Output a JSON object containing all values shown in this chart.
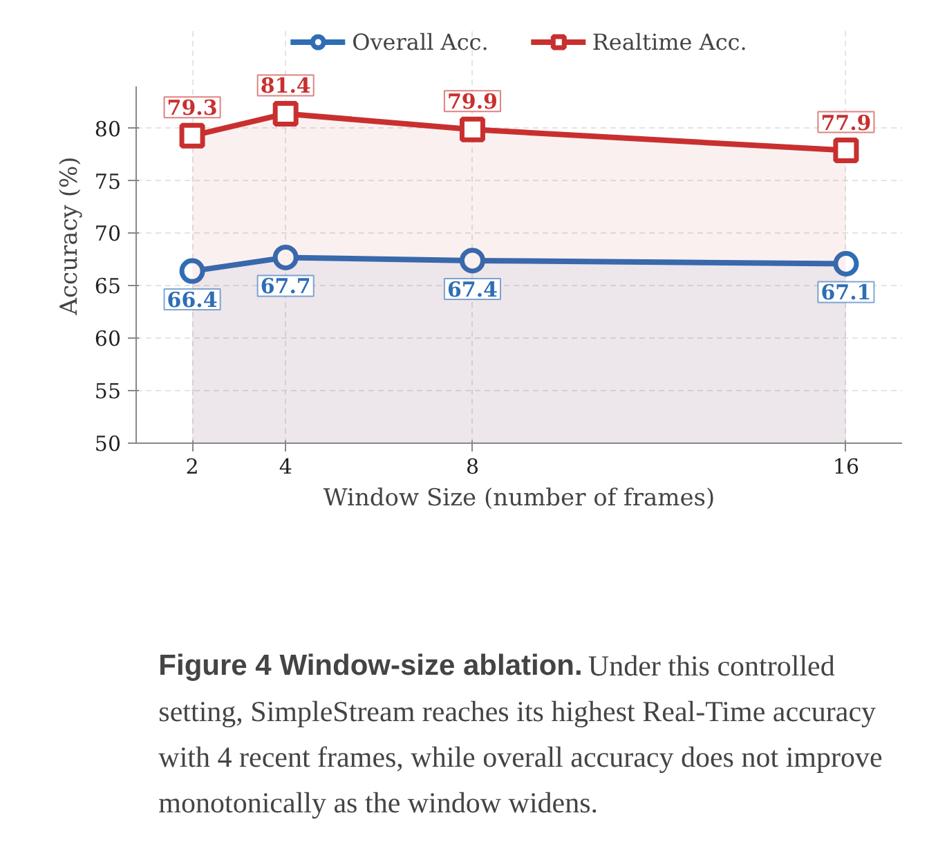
{
  "chart_data": {
    "type": "area",
    "xlabel": "Window Size (number of frames)",
    "ylabel": "Accuracy (%)",
    "x": [
      2,
      4,
      8,
      16
    ],
    "xlim": [
      0.8,
      17.2
    ],
    "xticks": [
      2,
      4,
      8,
      16
    ],
    "ylim": [
      50,
      84
    ],
    "yticks": [
      50,
      55,
      60,
      65,
      70,
      75,
      80
    ],
    "series": [
      {
        "name": "Overall Acc.",
        "color": "#2f6db5",
        "values": [
          66.4,
          67.7,
          67.4,
          67.1
        ],
        "marker": "circle"
      },
      {
        "name": "Realtime Acc.",
        "color": "#c8302f",
        "values": [
          79.3,
          81.4,
          79.9,
          77.9
        ],
        "marker": "square"
      }
    ],
    "data_labels": true,
    "grid": true,
    "legend": "top",
    "line_style": "solid",
    "annotations": [
      "Figure 4  Window-size ablation.",
      "Under this controlled setting, SimpleStream reaches its highest Real-Time accuracy with 4 recent frames, while overall accuracy does not improve monotonically as the window widens."
    ]
  }
}
